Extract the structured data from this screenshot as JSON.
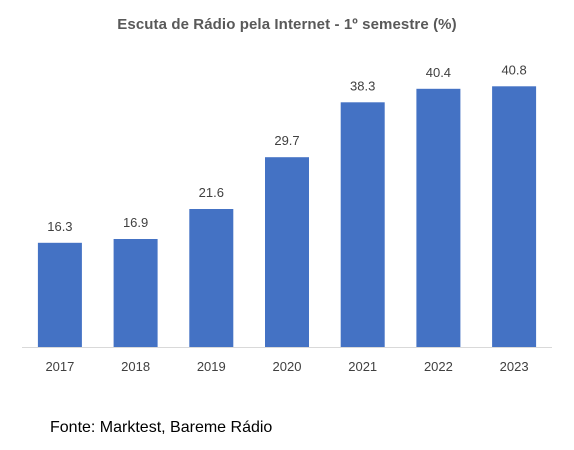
{
  "chart_data": {
    "type": "bar",
    "title": "Escuta de Rádio pela Internet - 1º semestre (%)",
    "xlabel": "",
    "ylabel": "",
    "categories": [
      "2017",
      "2018",
      "2019",
      "2020",
      "2021",
      "2022",
      "2023"
    ],
    "values": [
      16.3,
      16.9,
      21.6,
      29.7,
      38.3,
      40.4,
      40.8
    ],
    "value_labels": [
      "16.3",
      "16.9",
      "21.6",
      "29.7",
      "38.3",
      "40.4",
      "40.8"
    ],
    "ylim": [
      0,
      45
    ],
    "grid": false,
    "legend": "none",
    "bar_color": "#4472C4",
    "label_color": "#404040",
    "axis_color": "#D9D9D9"
  },
  "footer": {
    "source": "Fonte: Marktest, Bareme Rádio"
  }
}
